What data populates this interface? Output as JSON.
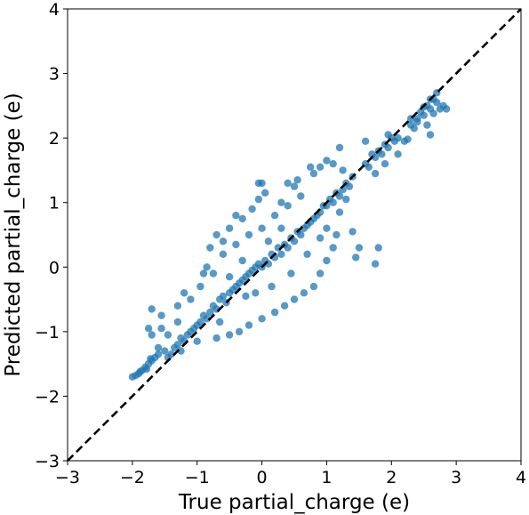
{
  "chart_data": {
    "type": "scatter",
    "title": "",
    "xlabel": "True partial_charge (e)",
    "ylabel": "Predicted partial_charge (e)",
    "xlim": [
      -3,
      4
    ],
    "ylim": [
      -3,
      4
    ],
    "x_ticks": [
      -3,
      -2,
      -1,
      0,
      1,
      2,
      3,
      4
    ],
    "y_ticks": [
      -3,
      -2,
      -1,
      0,
      1,
      2,
      3,
      4
    ],
    "x_tick_labels": [
      "−3",
      "−2",
      "−1",
      "0",
      "1",
      "2",
      "3",
      "4"
    ],
    "y_tick_labels": [
      "−3",
      "−2",
      "−1",
      "0",
      "1",
      "2",
      "3",
      "4"
    ],
    "grid": false,
    "legend": "none",
    "point_color": "#1f77b4",
    "reference_line": {
      "style": "dashed",
      "color": "#000000",
      "x": [
        -3,
        4
      ],
      "y": [
        -3,
        4
      ]
    },
    "series": [
      {
        "values": [
          [
            -2.0,
            -1.7
          ],
          [
            -1.95,
            -1.68
          ],
          [
            -1.9,
            -1.65
          ],
          [
            -1.85,
            -1.6
          ],
          [
            -1.8,
            -1.55
          ],
          [
            -1.75,
            -1.5
          ],
          [
            -1.7,
            -1.45
          ],
          [
            -1.65,
            -1.4
          ],
          [
            -1.6,
            -1.35
          ],
          [
            -1.72,
            -1.42
          ],
          [
            -1.78,
            -1.58
          ],
          [
            -1.88,
            -1.62
          ],
          [
            -1.5,
            -1.3
          ],
          [
            -1.45,
            -1.4
          ],
          [
            -1.4,
            -1.35
          ],
          [
            -1.3,
            -1.2
          ],
          [
            -1.25,
            -1.1
          ],
          [
            -1.2,
            -1.15
          ],
          [
            -1.15,
            -1.05
          ],
          [
            -1.1,
            -1.0
          ],
          [
            -1.05,
            -0.95
          ],
          [
            -1.0,
            -0.9
          ],
          [
            -0.95,
            -0.85
          ],
          [
            -0.9,
            -0.75
          ],
          [
            -0.85,
            -0.8
          ],
          [
            -0.8,
            -0.7
          ],
          [
            -0.75,
            -0.6
          ],
          [
            -0.7,
            -0.65
          ],
          [
            -0.65,
            -0.5
          ],
          [
            -0.6,
            -0.45
          ],
          [
            -0.55,
            -0.55
          ],
          [
            -0.5,
            -0.4
          ],
          [
            -0.45,
            -0.35
          ],
          [
            -0.4,
            -0.3
          ],
          [
            -0.35,
            -0.25
          ],
          [
            -0.3,
            -0.2
          ],
          [
            -0.25,
            -0.15
          ],
          [
            -0.2,
            -0.1
          ],
          [
            -0.15,
            -0.05
          ],
          [
            -0.1,
            0.0
          ],
          [
            -0.05,
            0.05
          ],
          [
            0.0,
            0.0
          ],
          [
            0.05,
            0.1
          ],
          [
            0.1,
            0.05
          ],
          [
            0.15,
            0.2
          ],
          [
            0.2,
            0.15
          ],
          [
            0.25,
            0.3
          ],
          [
            0.3,
            0.2
          ],
          [
            0.35,
            0.35
          ],
          [
            0.4,
            0.3
          ],
          [
            0.45,
            0.45
          ],
          [
            0.5,
            0.4
          ],
          [
            0.55,
            0.55
          ],
          [
            0.6,
            0.5
          ],
          [
            0.65,
            0.6
          ],
          [
            0.7,
            0.65
          ],
          [
            0.75,
            0.7
          ],
          [
            0.8,
            0.75
          ],
          [
            0.85,
            0.8
          ],
          [
            0.9,
            0.85
          ],
          [
            0.95,
            0.95
          ],
          [
            1.0,
            0.95
          ],
          [
            1.05,
            1.05
          ],
          [
            1.1,
            1.0
          ],
          [
            1.15,
            1.15
          ],
          [
            1.2,
            1.1
          ],
          [
            1.25,
            1.2
          ],
          [
            1.3,
            1.3
          ],
          [
            1.35,
            1.25
          ],
          [
            1.4,
            1.4
          ],
          [
            -1.7,
            -0.65
          ],
          [
            -1.75,
            -0.95
          ],
          [
            -1.55,
            -0.75
          ],
          [
            -1.3,
            -0.6
          ],
          [
            -1.2,
            -0.4
          ],
          [
            -0.9,
            -0.1
          ],
          [
            -0.8,
            0.3
          ],
          [
            -0.7,
            0.5
          ],
          [
            -0.6,
            0.4
          ],
          [
            -0.5,
            0.6
          ],
          [
            -0.4,
            0.8
          ],
          [
            -0.3,
            0.75
          ],
          [
            -0.15,
            0.9
          ],
          [
            -0.05,
            1.05
          ],
          [
            0.05,
            1.15
          ],
          [
            -0.05,
            1.3
          ],
          [
            0.0,
            1.3
          ],
          [
            0.3,
            1.0
          ],
          [
            0.4,
            1.3
          ],
          [
            0.5,
            1.25
          ],
          [
            0.55,
            1.35
          ],
          [
            0.75,
            1.55
          ],
          [
            0.8,
            1.45
          ],
          [
            0.9,
            1.55
          ],
          [
            1.0,
            1.65
          ],
          [
            1.2,
            1.85
          ],
          [
            1.1,
            1.6
          ],
          [
            1.25,
            1.5
          ],
          [
            1.3,
            1.05
          ],
          [
            1.2,
            0.85
          ],
          [
            1.4,
            0.55
          ],
          [
            1.5,
            0.3
          ],
          [
            1.45,
            0.15
          ],
          [
            1.75,
            0.05
          ],
          [
            1.8,
            0.3
          ],
          [
            1.15,
            0.5
          ],
          [
            1.1,
            0.3
          ],
          [
            1.0,
            0.1
          ],
          [
            0.9,
            -0.1
          ],
          [
            0.8,
            -0.3
          ],
          [
            0.65,
            -0.4
          ],
          [
            0.5,
            -0.5
          ],
          [
            0.35,
            -0.6
          ],
          [
            0.2,
            -0.7
          ],
          [
            0.0,
            -0.8
          ],
          [
            -0.2,
            -0.9
          ],
          [
            -0.35,
            -1.0
          ],
          [
            -0.5,
            -1.05
          ],
          [
            -0.7,
            -1.1
          ],
          [
            -1.0,
            -1.15
          ],
          [
            -0.75,
            -0.1
          ],
          [
            -0.95,
            -0.3
          ],
          [
            -1.1,
            -0.5
          ],
          [
            -1.3,
            -0.85
          ],
          [
            -1.55,
            -0.95
          ],
          [
            -1.7,
            -1.05
          ],
          [
            -1.6,
            -1.25
          ],
          [
            -1.45,
            -1.05
          ],
          [
            -1.35,
            -1.25
          ],
          [
            -1.25,
            -1.3
          ],
          [
            -0.85,
            0.0
          ],
          [
            -0.6,
            0.2
          ],
          [
            -0.4,
            0.35
          ],
          [
            -0.2,
            0.5
          ],
          [
            0.0,
            0.6
          ],
          [
            0.2,
            0.8
          ],
          [
            0.4,
            0.95
          ],
          [
            0.6,
            1.1
          ],
          [
            0.15,
            -0.3
          ],
          [
            -0.1,
            -0.4
          ],
          [
            0.45,
            -0.1
          ],
          [
            0.7,
            0.2
          ],
          [
            0.9,
            0.45
          ],
          [
            1.0,
            0.6
          ],
          [
            -0.3,
            0.1
          ],
          [
            -0.5,
            -0.15
          ],
          [
            -0.25,
            -0.45
          ],
          [
            0.1,
            0.4
          ],
          [
            0.3,
            0.6
          ],
          [
            -0.65,
            -0.85
          ],
          [
            1.6,
            1.6
          ],
          [
            1.65,
            1.55
          ],
          [
            1.7,
            1.75
          ],
          [
            1.75,
            1.7
          ],
          [
            1.8,
            1.8
          ],
          [
            1.85,
            1.75
          ],
          [
            1.9,
            1.9
          ],
          [
            1.95,
            1.85
          ],
          [
            2.0,
            2.0
          ],
          [
            2.05,
            1.95
          ],
          [
            2.1,
            2.0
          ],
          [
            1.95,
            2.05
          ],
          [
            1.75,
            1.45
          ],
          [
            1.9,
            1.6
          ],
          [
            1.6,
            1.95
          ],
          [
            2.1,
            1.75
          ],
          [
            2.2,
            1.95
          ],
          [
            2.25,
            1.98
          ],
          [
            2.3,
            2.2
          ],
          [
            2.35,
            2.15
          ],
          [
            2.4,
            2.3
          ],
          [
            2.45,
            2.4
          ],
          [
            2.5,
            2.35
          ],
          [
            2.55,
            2.5
          ],
          [
            2.6,
            2.45
          ],
          [
            2.65,
            2.6
          ],
          [
            2.7,
            2.55
          ],
          [
            2.75,
            2.45
          ],
          [
            2.8,
            2.5
          ],
          [
            2.85,
            2.45
          ],
          [
            2.6,
            2.6
          ],
          [
            2.55,
            2.2
          ],
          [
            2.6,
            2.05
          ],
          [
            2.7,
            2.7
          ],
          [
            2.3,
            2.3
          ],
          [
            2.4,
            2.25
          ],
          [
            2.5,
            2.48
          ],
          [
            2.65,
            2.38
          ]
        ]
      }
    ]
  }
}
